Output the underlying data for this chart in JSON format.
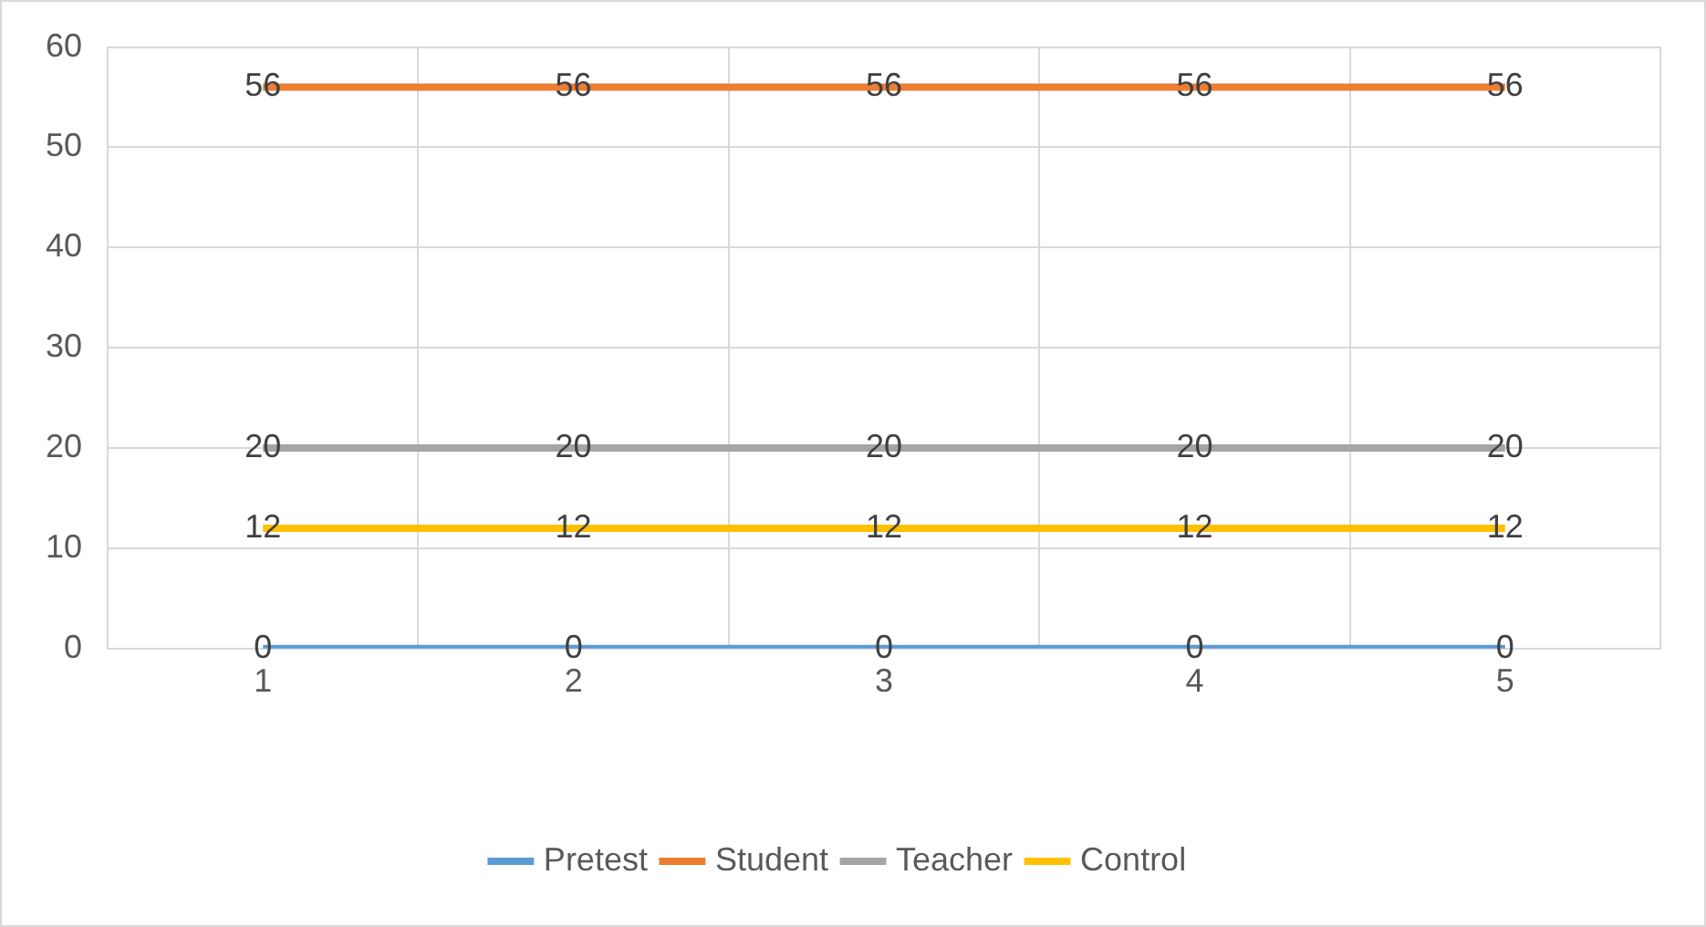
{
  "chart_data": {
    "type": "line",
    "categories": [
      "1",
      "2",
      "3",
      "4",
      "5"
    ],
    "series": [
      {
        "name": "Pretest",
        "color": "#5b9bd5",
        "values": [
          0,
          0,
          0,
          0,
          0
        ]
      },
      {
        "name": "Student",
        "color": "#ed7d31",
        "values": [
          56,
          56,
          56,
          56,
          56
        ]
      },
      {
        "name": "Teacher",
        "color": "#a5a5a5",
        "values": [
          20,
          20,
          20,
          20,
          20
        ]
      },
      {
        "name": "Control",
        "color": "#ffc000",
        "values": [
          12,
          12,
          12,
          12,
          12
        ]
      }
    ],
    "ylim": [
      0,
      60
    ],
    "yticks": [
      0,
      10,
      20,
      30,
      40,
      50,
      60
    ],
    "grid": true,
    "legend": "bottom",
    "marker": "none",
    "line_style": "solid",
    "data_labels": true
  }
}
